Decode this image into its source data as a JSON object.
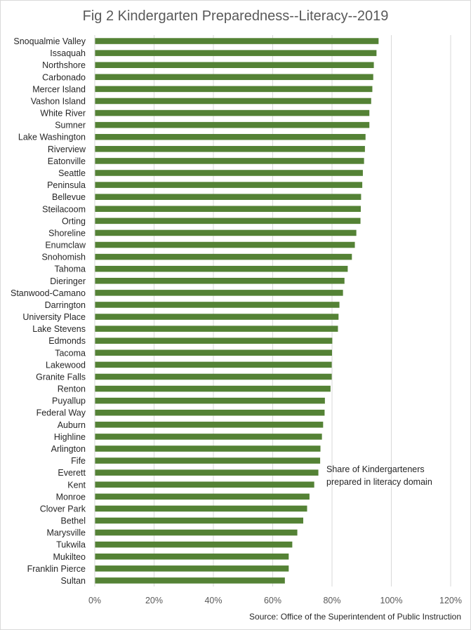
{
  "chart_data": {
    "type": "bar",
    "orientation": "horizontal",
    "title": "Fig 2 Kindergarten Preparedness--Literacy--2019",
    "annotation": "Share of Kindergarteners prepared  in literacy domain",
    "source": "Source: Office of the Superintendent of Public Instruction",
    "categories": [
      "Snoqualmie Valley",
      "Issaquah",
      "Northshore",
      "Carbonado",
      "Mercer Island",
      "Vashon Island",
      "White River",
      "Sumner",
      "Lake Washington",
      "Riverview",
      "Eatonville",
      "Seattle",
      "Peninsula",
      "Bellevue",
      "Steilacoom",
      "Orting",
      "Shoreline",
      "Enumclaw",
      "Snohomish",
      "Tahoma",
      "Dieringer",
      "Stanwood-Camano",
      "Darrington",
      "University Place",
      "Lake Stevens",
      "Edmonds",
      "Tacoma",
      "Lakewood",
      "Granite Falls",
      "Renton",
      "Puyallup",
      "Federal Way",
      "Auburn",
      "Highline",
      "Arlington",
      "Fife",
      "Everett",
      "Kent",
      "Monroe",
      "Clover Park",
      "Bethel",
      "Marysville",
      "Tukwila",
      "Mukilteo",
      "Franklin Pierce",
      "Sultan"
    ],
    "values": [
      95.7,
      95.0,
      94.1,
      93.9,
      93.6,
      93.2,
      92.6,
      92.6,
      91.3,
      91.1,
      90.8,
      90.4,
      90.2,
      89.8,
      89.7,
      89.6,
      88.2,
      87.7,
      86.7,
      85.3,
      84.2,
      83.7,
      82.5,
      82.2,
      82.0,
      80.1,
      80.0,
      79.9,
      79.9,
      79.5,
      77.6,
      77.5,
      77.0,
      76.6,
      76.1,
      76.0,
      75.4,
      74.0,
      72.4,
      71.6,
      70.3,
      68.3,
      66.6,
      65.4,
      65.4,
      64.1
    ],
    "xlim": [
      0,
      120
    ],
    "xticks": [
      "0%",
      "20%",
      "40%",
      "60%",
      "80%",
      "100%",
      "120%"
    ],
    "grid": true,
    "bar_color": "#548235"
  }
}
